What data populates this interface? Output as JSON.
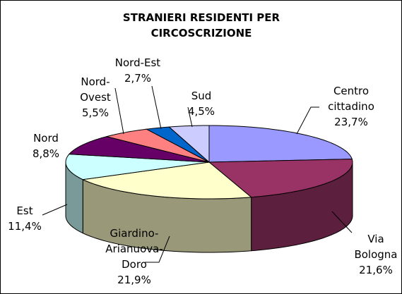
{
  "chart_data": {
    "type": "pie",
    "title": "STRANIERI RESIDENTI PER CIRCOSCRIZIONE",
    "categories": [
      "Centro cittadino",
      "Via Bologna",
      "Giardino-Arianuova-Doro",
      "Est",
      "Nord",
      "Nord-Ovest",
      "Nord-Est",
      "Sud"
    ],
    "values": [
      23.7,
      21.6,
      21.9,
      11.4,
      8.8,
      5.5,
      2.7,
      4.5
    ],
    "value_labels": [
      "23,7%",
      "21,6%",
      "21,9%",
      "11,4%",
      "8,8%",
      "5,5%",
      "2,7%",
      "4,5%"
    ],
    "colors": [
      "#9999ff",
      "#993366",
      "#ffffcc",
      "#ccffff",
      "#660066",
      "#ff8080",
      "#0066cc",
      "#ccccff"
    ]
  }
}
